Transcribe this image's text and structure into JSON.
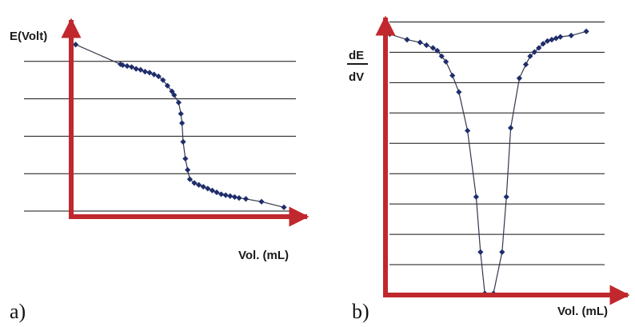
{
  "colors": {
    "axis": "#c0282d",
    "grid": "#111111",
    "marker": "#1f2d6b",
    "curve": "#33384a"
  },
  "chart_data": [
    {
      "type": "line",
      "panel_label": "a)",
      "ylabel": "E(Volt)",
      "xlabel": "Vol. (mL)",
      "xlim": [
        0,
        100
      ],
      "ylim": [
        0,
        100
      ],
      "grid": true,
      "gridlines_y": [
        0,
        20,
        40,
        60,
        80
      ],
      "series": [
        {
          "x": [
            2,
            22,
            23,
            25,
            27,
            29,
            31,
            33,
            35,
            37,
            39,
            41,
            43,
            45,
            46,
            48,
            49,
            49.5,
            50,
            51,
            52,
            53,
            55,
            57,
            59,
            61,
            63,
            65,
            67,
            69,
            71,
            73,
            75,
            78,
            85,
            95
          ],
          "y": [
            92,
            81.5,
            81,
            80.5,
            80,
            79,
            78.5,
            77.5,
            77,
            76,
            75,
            73,
            70,
            67,
            65,
            61,
            55,
            50,
            40,
            31,
            25,
            20,
            18,
            17,
            16,
            15,
            14,
            13,
            12,
            11.5,
            11,
            10.5,
            10,
            9.5,
            8,
            5
          ]
        }
      ]
    },
    {
      "type": "line",
      "panel_label": "b)",
      "ylabel_numerator": "dE",
      "ylabel_denominator": "dV",
      "xlabel": "Vol. (mL)",
      "xlim": [
        0,
        100
      ],
      "ylim": [
        0,
        100
      ],
      "grid": true,
      "gridlines_y": [
        0,
        11,
        22,
        33,
        44,
        55,
        66,
        77,
        88,
        99
      ],
      "series": [
        {
          "x": [
            2,
            10,
            16,
            19,
            22,
            24,
            26,
            28,
            31,
            34,
            38,
            42,
            44,
            46,
            50,
            54,
            56,
            58,
            62,
            65,
            67,
            69,
            71,
            73,
            75,
            77,
            79,
            81,
            86,
            93
          ],
          "y": [
            94,
            92,
            91,
            90,
            89,
            88,
            86,
            84,
            79,
            73,
            59,
            35,
            15,
            0,
            0,
            15,
            35,
            60,
            78,
            83,
            86,
            87.5,
            89,
            90.5,
            91.5,
            92,
            92.5,
            93,
            93.5,
            95
          ]
        }
      ]
    }
  ]
}
